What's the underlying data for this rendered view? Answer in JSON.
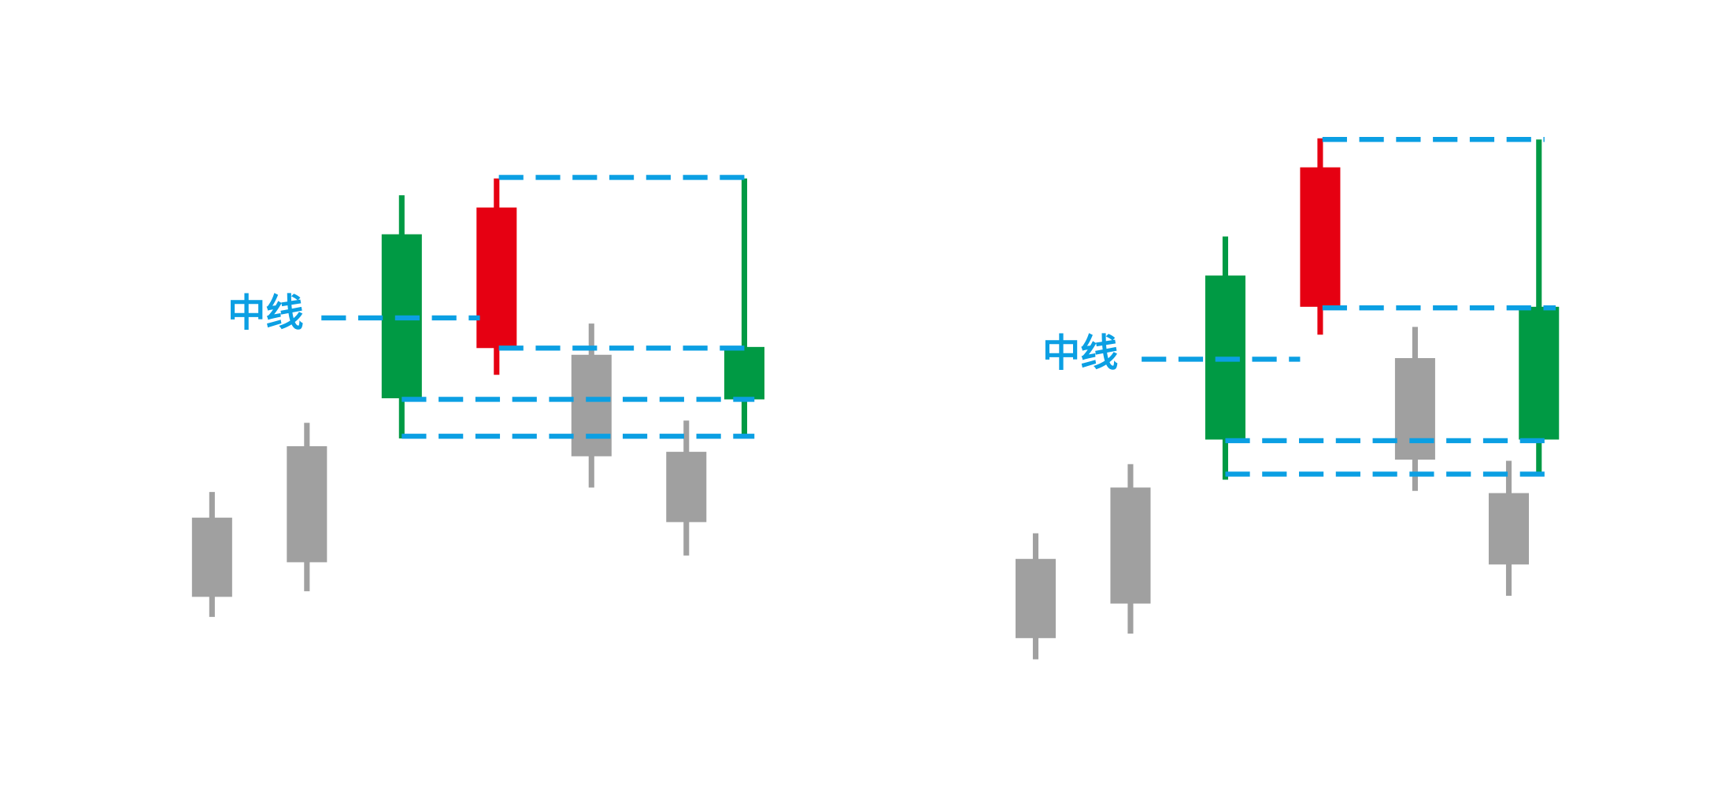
{
  "labels": {
    "left_midline": "中线",
    "right_midline": "中线"
  },
  "colors": {
    "bullish": "#009a44",
    "bearish": "#e60012",
    "neutral": "#a0a0a0",
    "guide": "#0b9fe3"
  },
  "panels": [
    {
      "name": "left-pattern",
      "candles": [
        {
          "role": "context",
          "color": "neutral"
        },
        {
          "role": "context",
          "color": "neutral"
        },
        {
          "role": "reference",
          "color": "bullish"
        },
        {
          "role": "gap",
          "color": "bearish"
        },
        {
          "role": "context",
          "color": "neutral"
        },
        {
          "role": "context",
          "color": "neutral"
        },
        {
          "role": "signal",
          "color": "bullish"
        }
      ]
    },
    {
      "name": "right-pattern",
      "candles": [
        {
          "role": "context",
          "color": "neutral"
        },
        {
          "role": "context",
          "color": "neutral"
        },
        {
          "role": "reference",
          "color": "bullish"
        },
        {
          "role": "gap",
          "color": "bearish"
        },
        {
          "role": "context",
          "color": "neutral"
        },
        {
          "role": "context",
          "color": "neutral"
        },
        {
          "role": "signal",
          "color": "bullish"
        }
      ]
    }
  ]
}
